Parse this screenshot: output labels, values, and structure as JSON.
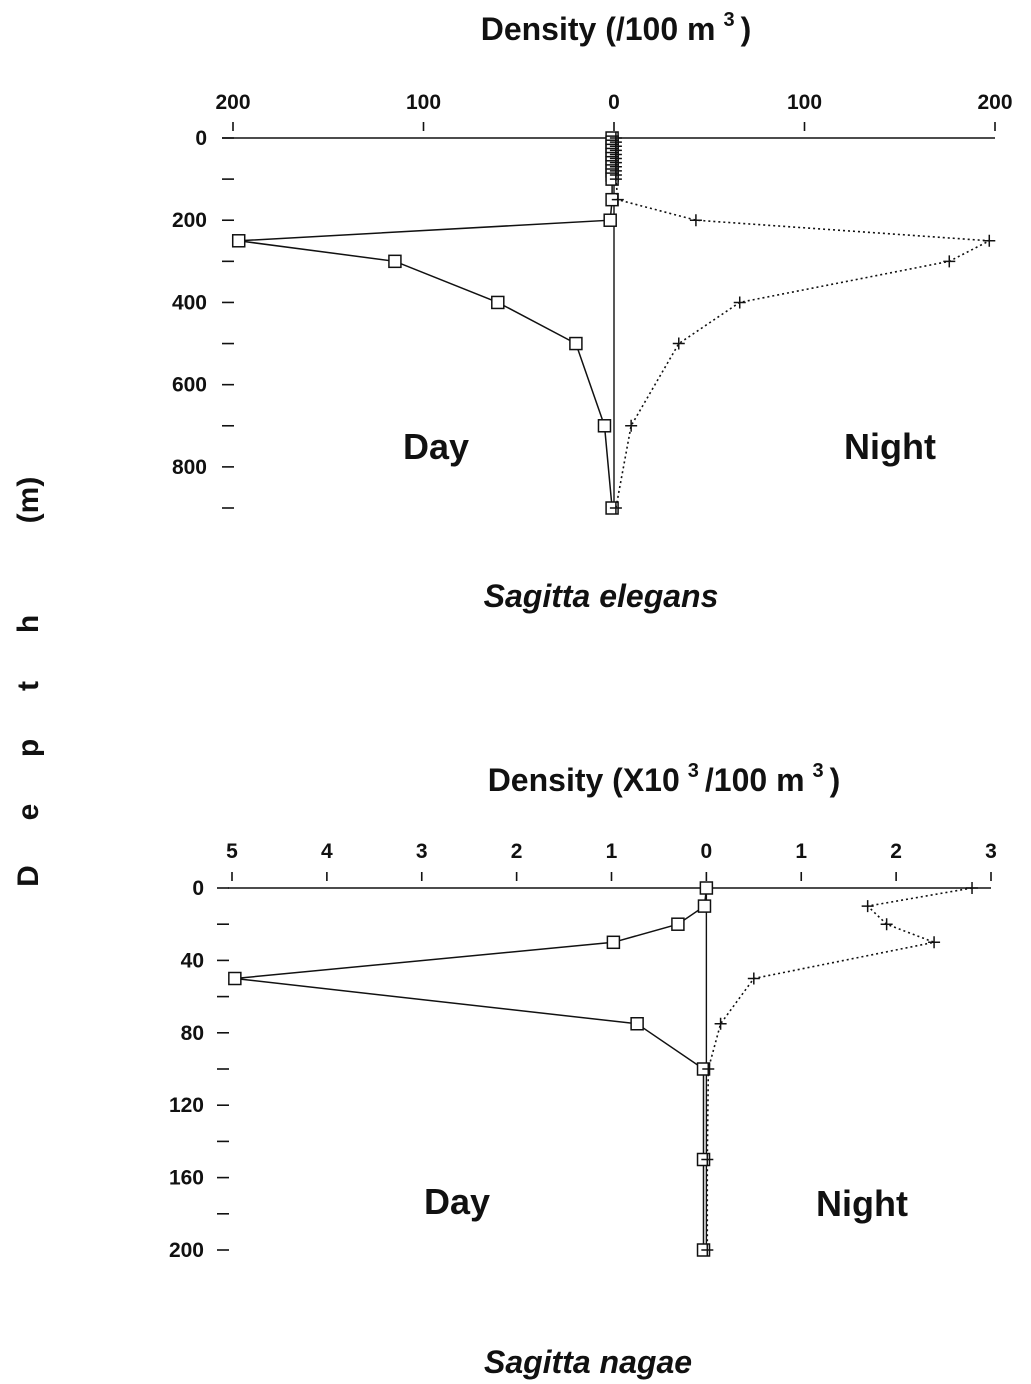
{
  "figure": {
    "ylabel_letters": [
      "D",
      "e",
      "p",
      "t",
      "h",
      "(m)"
    ]
  },
  "chart_data": [
    {
      "type": "line",
      "title": "Density (/100 m",
      "title_sup": "3",
      "title_tail": ")",
      "species": "Sagitta elegans",
      "day_label": "Day",
      "night_label": "Night",
      "x_ticks": [
        "200",
        "100",
        "0",
        "100",
        "200"
      ],
      "x_range": [
        -200,
        200
      ],
      "y_ticks": [
        "0",
        "",
        "200",
        "",
        "400",
        "",
        "600",
        "",
        "800",
        ""
      ],
      "y_range": [
        0,
        900
      ],
      "series": [
        {
          "key": "day",
          "depth": [
            0,
            10,
            20,
            30,
            40,
            50,
            60,
            70,
            80,
            90,
            100,
            150,
            200,
            250,
            300,
            400,
            500,
            700,
            900
          ],
          "density": [
            -1,
            -1,
            -1,
            -1,
            -1,
            -1,
            -1,
            -1,
            -1,
            -1,
            -1,
            -1,
            -2,
            -197,
            -115,
            -61,
            -20,
            -5,
            -1
          ]
        },
        {
          "key": "night",
          "depth": [
            0,
            10,
            20,
            30,
            40,
            50,
            60,
            70,
            80,
            90,
            100,
            150,
            200,
            250,
            300,
            400,
            500,
            700,
            900
          ],
          "density": [
            1,
            1,
            1,
            1,
            1,
            1,
            1,
            1,
            1,
            1,
            1,
            2,
            43,
            197,
            176,
            66,
            34,
            9,
            1
          ]
        }
      ]
    },
    {
      "type": "line",
      "title": "Density (X10",
      "title_sup": "3",
      "title_mid": "/100 m",
      "title_sup2": "3",
      "title_tail": ")",
      "species": "Sagitta nagae",
      "day_label": "Day",
      "night_label": "Night",
      "x_ticks": [
        "5",
        "4",
        "3",
        "2",
        "1",
        "0",
        "1",
        "2",
        "3"
      ],
      "x_range": [
        -5,
        3
      ],
      "y_ticks": [
        "0",
        "",
        "40",
        "",
        "80",
        "",
        "120",
        "",
        "160",
        "",
        "200"
      ],
      "y_range": [
        0,
        200
      ],
      "series": [
        {
          "key": "day",
          "depth": [
            0,
            10,
            20,
            30,
            50,
            75,
            100,
            150,
            200
          ],
          "density": [
            0,
            -0.02,
            -0.3,
            -0.98,
            -4.97,
            -0.73,
            -0.03,
            -0.03,
            -0.03
          ]
        },
        {
          "key": "night",
          "depth": [
            0,
            10,
            20,
            30,
            50,
            75,
            100,
            150,
            200
          ],
          "density": [
            2.8,
            1.7,
            1.9,
            2.4,
            0.5,
            0.15,
            0.02,
            0.01,
            0.01
          ]
        }
      ]
    }
  ]
}
